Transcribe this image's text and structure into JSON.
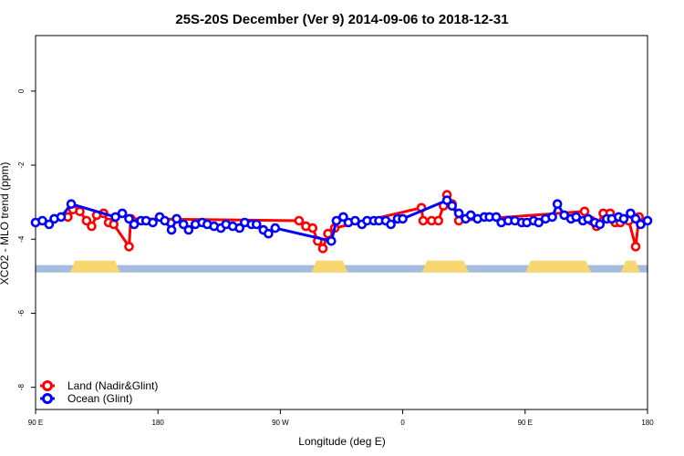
{
  "chart_data": {
    "type": "line",
    "title": "25S-20S December (Ver 9)   2014-09-06 to 2018-12-31",
    "xlabel": "Longitude (deg E)",
    "ylabel": "XCO2 - MLO trend (ppm)",
    "xlim": [
      90,
      450
    ],
    "ylim": [
      -8.6,
      1.5
    ],
    "x_ticks": [
      {
        "value": 90,
        "label": "90 E"
      },
      {
        "value": 162,
        "label": "180"
      },
      {
        "value": 234,
        "label": "90 W"
      },
      {
        "value": 306,
        "label": "0"
      },
      {
        "value": 378,
        "label": "90 E"
      },
      {
        "value": 450,
        "label": "180"
      }
    ],
    "y_ticks": [
      0,
      -2,
      -4,
      -6,
      -8
    ],
    "grid": false,
    "legend_position": "bottom-left",
    "colors": {
      "land": "#ff0000",
      "ocean": "#0000ff",
      "band_ocean": "#a4bddf",
      "band_land": "#f8d771"
    },
    "land_band": {
      "y_range": [
        -4.7,
        -4.9
      ],
      "land_segments": [
        [
          110,
          140
        ],
        [
          252,
          274
        ],
        [
          317,
          345
        ],
        [
          378,
          417
        ],
        [
          434,
          446
        ]
      ],
      "edge_y": [
        -4.82,
        -4.58,
        -4.82
      ]
    },
    "series": [
      {
        "name": "Land (Nadir&Glint)",
        "color": "#ff0000",
        "points": [
          [
            109,
            -3.4
          ],
          [
            112,
            -3.2
          ],
          [
            116,
            -3.25
          ],
          [
            120,
            -3.5
          ],
          [
            123,
            -3.65
          ],
          [
            126,
            -3.35
          ],
          [
            130,
            -3.3
          ],
          [
            133,
            -3.55
          ],
          [
            136,
            -3.6
          ],
          [
            145,
            -4.2
          ],
          [
            146,
            -3.45
          ],
          [
            245,
            -3.5
          ],
          [
            249,
            -3.65
          ],
          [
            253,
            -3.7
          ],
          [
            256,
            -4.05
          ],
          [
            259,
            -4.25
          ],
          [
            262,
            -3.85
          ],
          [
            266,
            -3.7
          ],
          [
            317,
            -3.15
          ],
          [
            318,
            -3.5
          ],
          [
            323,
            -3.5
          ],
          [
            327,
            -3.5
          ],
          [
            330,
            -3.1
          ],
          [
            332,
            -2.8
          ],
          [
            335,
            -3.05
          ],
          [
            339,
            -3.5
          ],
          [
            413,
            -3.25
          ],
          [
            417,
            -3.5
          ],
          [
            420,
            -3.65
          ],
          [
            424,
            -3.3
          ],
          [
            428,
            -3.3
          ],
          [
            431,
            -3.55
          ],
          [
            434,
            -3.55
          ],
          [
            439,
            -3.5
          ],
          [
            443,
            -4.2
          ],
          [
            445,
            -3.4
          ]
        ]
      },
      {
        "name": "Ocean (Glint)",
        "color": "#0000ff",
        "points": [
          [
            90,
            -3.55
          ],
          [
            94,
            -3.5
          ],
          [
            98,
            -3.6
          ],
          [
            101,
            -3.45
          ],
          [
            105,
            -3.4
          ],
          [
            111,
            -3.05
          ],
          [
            137,
            -3.4
          ],
          [
            141,
            -3.3
          ],
          [
            145,
            -3.45
          ],
          [
            148,
            -3.6
          ],
          [
            152,
            -3.5
          ],
          [
            155,
            -3.5
          ],
          [
            159,
            -3.55
          ],
          [
            163,
            -3.4
          ],
          [
            166,
            -3.5
          ],
          [
            170,
            -3.75
          ],
          [
            173,
            -3.45
          ],
          [
            177,
            -3.6
          ],
          [
            180,
            -3.75
          ],
          [
            184,
            -3.6
          ],
          [
            188,
            -3.55
          ],
          [
            191,
            -3.6
          ],
          [
            195,
            -3.65
          ],
          [
            199,
            -3.7
          ],
          [
            202,
            -3.6
          ],
          [
            206,
            -3.65
          ],
          [
            210,
            -3.7
          ],
          [
            213,
            -3.55
          ],
          [
            217,
            -3.6
          ],
          [
            220,
            -3.6
          ],
          [
            224,
            -3.75
          ],
          [
            227,
            -3.85
          ],
          [
            231,
            -3.7
          ],
          [
            264,
            -4.05
          ],
          [
            267,
            -3.5
          ],
          [
            271,
            -3.4
          ],
          [
            274,
            -3.55
          ],
          [
            278,
            -3.5
          ],
          [
            282,
            -3.6
          ],
          [
            285,
            -3.5
          ],
          [
            289,
            -3.5
          ],
          [
            292,
            -3.5
          ],
          [
            296,
            -3.5
          ],
          [
            299,
            -3.6
          ],
          [
            303,
            -3.45
          ],
          [
            306,
            -3.45
          ],
          [
            332,
            -2.95
          ],
          [
            335,
            -3.1
          ],
          [
            339,
            -3.3
          ],
          [
            343,
            -3.45
          ],
          [
            346,
            -3.35
          ],
          [
            350,
            -3.45
          ],
          [
            354,
            -3.4
          ],
          [
            357,
            -3.4
          ],
          [
            361,
            -3.4
          ],
          [
            364,
            -3.55
          ],
          [
            368,
            -3.5
          ],
          [
            372,
            -3.5
          ],
          [
            376,
            -3.55
          ],
          [
            379,
            -3.55
          ],
          [
            383,
            -3.5
          ],
          [
            386,
            -3.55
          ],
          [
            390,
            -3.45
          ],
          [
            394,
            -3.4
          ],
          [
            397,
            -3.05
          ],
          [
            401,
            -3.35
          ],
          [
            405,
            -3.45
          ],
          [
            408,
            -3.4
          ],
          [
            412,
            -3.5
          ],
          [
            415,
            -3.45
          ],
          [
            419,
            -3.55
          ],
          [
            422,
            -3.6
          ],
          [
            426,
            -3.45
          ],
          [
            429,
            -3.45
          ],
          [
            433,
            -3.4
          ],
          [
            436,
            -3.45
          ],
          [
            440,
            -3.3
          ],
          [
            443,
            -3.45
          ],
          [
            446,
            -3.6
          ],
          [
            450,
            -3.5
          ]
        ]
      }
    ]
  }
}
